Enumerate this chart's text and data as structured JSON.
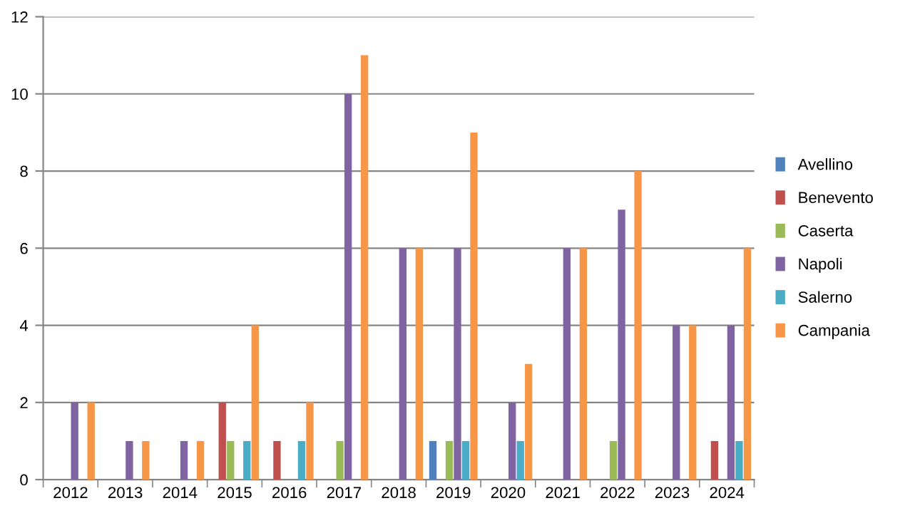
{
  "chart_data": {
    "type": "bar",
    "categories": [
      "2012",
      "2013",
      "2014",
      "2015",
      "2016",
      "2017",
      "2018",
      "2019",
      "2020",
      "2021",
      "2022",
      "2023",
      "2024"
    ],
    "series": [
      {
        "name": "Avellino",
        "color": "#4f81bd",
        "values": [
          0,
          0,
          0,
          0,
          0,
          0,
          0,
          1,
          0,
          0,
          0,
          0,
          0
        ]
      },
      {
        "name": "Benevento",
        "color": "#c0504d",
        "values": [
          0,
          0,
          0,
          2,
          1,
          0,
          0,
          0,
          0,
          0,
          0,
          0,
          1
        ]
      },
      {
        "name": "Caserta",
        "color": "#9bbb59",
        "values": [
          0,
          0,
          0,
          1,
          0,
          1,
          0,
          1,
          0,
          0,
          1,
          0,
          0
        ]
      },
      {
        "name": "Napoli",
        "color": "#8064a2",
        "values": [
          2,
          1,
          1,
          0,
          0,
          10,
          6,
          6,
          2,
          6,
          7,
          4,
          4
        ]
      },
      {
        "name": "Salerno",
        "color": "#4bacc6",
        "values": [
          0,
          0,
          0,
          1,
          1,
          0,
          0,
          1,
          1,
          0,
          0,
          0,
          1
        ]
      },
      {
        "name": "Campania",
        "color": "#f79646",
        "values": [
          2,
          1,
          1,
          4,
          2,
          11,
          6,
          9,
          3,
          6,
          8,
          4,
          6
        ]
      }
    ],
    "ylim": [
      0,
      12
    ],
    "yticks": [
      0,
      2,
      4,
      6,
      8,
      10,
      12
    ],
    "grid": "y",
    "legend": "right"
  }
}
